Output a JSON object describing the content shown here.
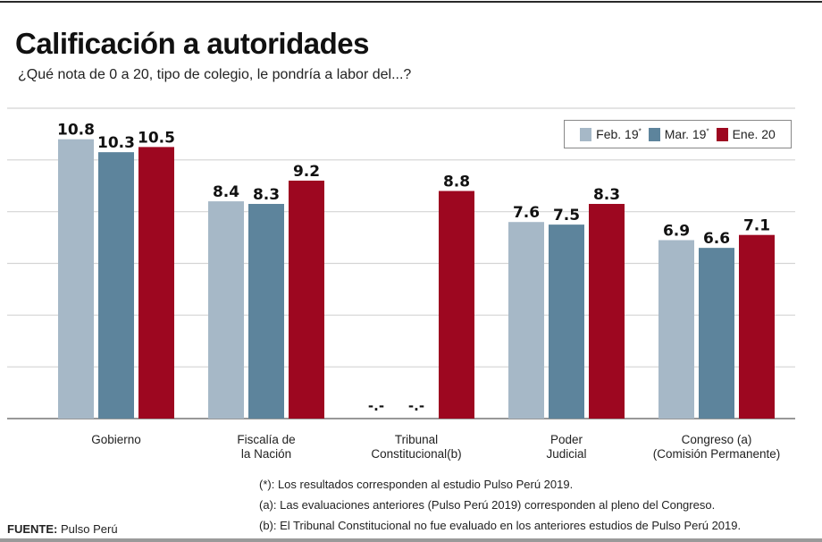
{
  "chart_data": {
    "type": "bar",
    "title": "Calificación a autoridades",
    "subtitle": "¿Qué nota de 0 a 20, tipo de colegio, le pondría a labor del...?",
    "categories": [
      [
        "Gobierno"
      ],
      [
        "Fiscalía de",
        "la Nación"
      ],
      [
        "Tribunal",
        "Constitucional(b)"
      ],
      [
        "Poder",
        "Judicial"
      ],
      [
        "Congreso (a)",
        "(Comisión Permanente)"
      ]
    ],
    "series": [
      {
        "name": "Feb. 19*",
        "color": "#a6b8c7",
        "values": [
          10.8,
          8.4,
          null,
          7.6,
          6.9
        ]
      },
      {
        "name": "Mar. 19*",
        "color": "#5d849c",
        "values": [
          10.3,
          8.3,
          null,
          7.5,
          6.6
        ]
      },
      {
        "name": "Ene. 20",
        "color": "#9d0720",
        "values": [
          10.5,
          9.2,
          8.8,
          8.3,
          7.1
        ]
      }
    ],
    "missing_label": "-.-",
    "ylim": [
      0,
      12
    ],
    "gridline_step": 2,
    "grid": true,
    "y_tick_labels_shown": false,
    "legend_position": "top-right",
    "xlabel": "",
    "ylabel": ""
  },
  "legend": {
    "items": [
      {
        "label": "Feb. 19",
        "sup": "*",
        "color": "#a6b8c7"
      },
      {
        "label": "Mar. 19",
        "sup": "*",
        "color": "#5d849c"
      },
      {
        "label": "Ene. 20",
        "sup": "",
        "color": "#9d0720"
      }
    ]
  },
  "notes": [
    "(*): Los resultados corresponden al estudio Pulso Perú 2019.",
    "(a): Las evaluaciones anteriores (Pulso Perú 2019) corresponden al pleno del Congreso.",
    "(b): El Tribunal Constitucional no fue evaluado en los anteriores estudios de Pulso Perú 2019."
  ],
  "source": {
    "label": "FUENTE:",
    "value": "Pulso Perú"
  }
}
